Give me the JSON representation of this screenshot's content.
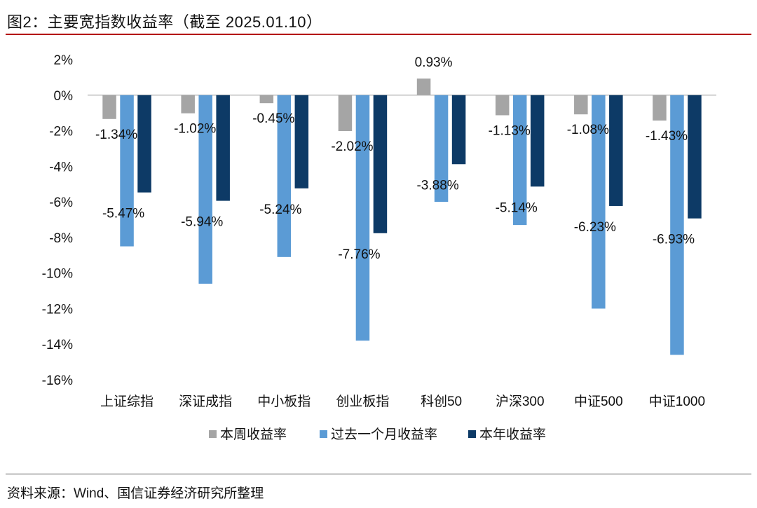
{
  "header": {
    "title": "图2：主要宽指数收益率（截至 2025.01.10）"
  },
  "footer": {
    "source": "资料来源：Wind、国信证券经济研究所整理"
  },
  "colors": {
    "weekly": "#a5a5a5",
    "monthly": "#5b9bd5",
    "ytd": "#0d3a66",
    "accent_rule": "#b30000"
  },
  "chart_data": {
    "type": "bar",
    "categories": [
      "上证综指",
      "深证成指",
      "中小板指",
      "创业板指",
      "科创50",
      "沪深300",
      "中证500",
      "中证1000"
    ],
    "series": [
      {
        "name": "本周收益率",
        "values": [
          -1.34,
          -1.02,
          -0.45,
          -2.02,
          0.93,
          -1.13,
          -1.08,
          -1.43
        ],
        "labels": [
          "-1.34%",
          "-1.02%",
          "-0.45%",
          "-2.02%",
          "0.93%",
          "-1.13%",
          "-1.08%",
          "-1.43%"
        ]
      },
      {
        "name": "过去一个月收益率",
        "values": [
          -8.5,
          -10.6,
          -9.1,
          -13.8,
          -6.0,
          -7.3,
          -12.0,
          -14.6
        ]
      },
      {
        "name": "本年收益率",
        "values": [
          -5.47,
          -5.94,
          -5.24,
          -7.76,
          -3.88,
          -5.14,
          -6.23,
          -6.93
        ],
        "labels": [
          "-5.47%",
          "-5.94%",
          "-5.24%",
          "-7.76%",
          "-3.88%",
          "-5.14%",
          "-6.23%",
          "-6.93%"
        ]
      }
    ],
    "ylim": [
      -16,
      2
    ],
    "yticks": [
      2,
      0,
      -2,
      -4,
      -6,
      -8,
      -10,
      -12,
      -14,
      -16
    ],
    "ytick_labels": [
      "2%",
      "0%",
      "-2%",
      "-4%",
      "-6%",
      "-8%",
      "-10%",
      "-12%",
      "-14%",
      "-16%"
    ],
    "legend_position": "bottom",
    "grid": false
  }
}
